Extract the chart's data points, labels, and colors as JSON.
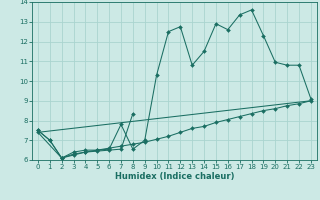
{
  "xlabel": "Humidex (Indice chaleur)",
  "bg_color": "#cce9e5",
  "grid_color": "#aad4cf",
  "line_color": "#1a6e62",
  "xlim": [
    -0.5,
    23.5
  ],
  "ylim": [
    6,
    14
  ],
  "xticks": [
    0,
    1,
    2,
    3,
    4,
    5,
    6,
    7,
    8,
    9,
    10,
    11,
    12,
    13,
    14,
    15,
    16,
    17,
    18,
    19,
    20,
    21,
    22,
    23
  ],
  "yticks": [
    6,
    7,
    8,
    9,
    10,
    11,
    12,
    13,
    14
  ],
  "series": [
    {
      "x": [
        0,
        1,
        2,
        3,
        4,
        5,
        6,
        7,
        8,
        9,
        10,
        11,
        12,
        13,
        14,
        15,
        16,
        17,
        18,
        19,
        20,
        21,
        22,
        23
      ],
      "y": [
        7.5,
        7.0,
        6.1,
        6.4,
        6.5,
        6.5,
        6.55,
        7.8,
        6.55,
        7.0,
        10.3,
        12.5,
        12.75,
        10.8,
        11.5,
        12.9,
        12.6,
        13.35,
        13.6,
        12.3,
        10.95,
        10.8,
        10.8,
        9.1
      ],
      "marker": true
    },
    {
      "x": [
        0,
        1,
        2,
        3,
        4,
        5,
        6,
        7,
        8
      ],
      "y": [
        7.5,
        7.0,
        6.1,
        6.3,
        6.4,
        6.45,
        6.5,
        6.55,
        8.35
      ],
      "marker": true
    },
    {
      "x": [
        0,
        2,
        3,
        4,
        5,
        6,
        7,
        8,
        9,
        10,
        11,
        12,
        13,
        14,
        15,
        16,
        17,
        18,
        19,
        20,
        21,
        22,
        23
      ],
      "y": [
        7.4,
        6.1,
        6.25,
        6.4,
        6.5,
        6.6,
        6.7,
        6.8,
        6.9,
        7.05,
        7.2,
        7.4,
        7.6,
        7.7,
        7.9,
        8.05,
        8.2,
        8.35,
        8.5,
        8.6,
        8.75,
        8.85,
        9.0
      ],
      "marker": true
    },
    {
      "x": [
        0,
        23
      ],
      "y": [
        7.4,
        9.0
      ],
      "marker": false
    }
  ]
}
